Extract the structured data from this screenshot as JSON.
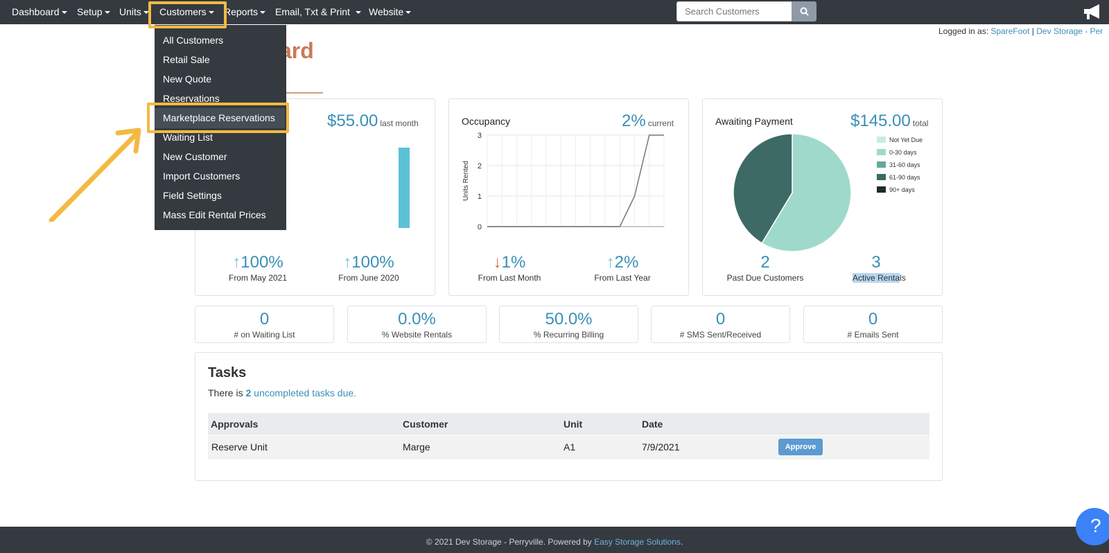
{
  "nav": {
    "items": [
      "Dashboard",
      "Setup",
      "Units",
      "Customers",
      "Reports",
      "Email, Txt & Print",
      "Website"
    ],
    "search_placeholder": "Search Customers"
  },
  "header": {
    "logged_in_label": "Logged in as:",
    "user": "SpareFoot",
    "separator": "|",
    "location": "Dev Storage - Per"
  },
  "page": {
    "title_fragment": "ard"
  },
  "dropdown": {
    "items": [
      "All Customers",
      "Retail Sale",
      "New Quote",
      "Reservations",
      "Marketplace Reservations",
      "Waiting List",
      "New Customer",
      "Import Customers",
      "Field Settings",
      "Mass Edit Rental Prices"
    ],
    "highlighted": "Marketplace Reservations"
  },
  "revenue_card": {
    "value": "$55.00",
    "period": "last month",
    "stat1_value": "100%",
    "stat1_label": "From May 2021",
    "stat2_value": "100%",
    "stat2_label": "From June 2020"
  },
  "occupancy_card": {
    "label": "Occupancy",
    "value": "2%",
    "period": "current",
    "stat1_value": "1%",
    "stat1_label": "From Last Month",
    "stat2_value": "2%",
    "stat2_label": "From Last Year"
  },
  "payment_card": {
    "label": "Awaiting Payment",
    "value": "$145.00",
    "period": "total",
    "stat1_value": "2",
    "stat1_label": "Past Due Customers",
    "stat2_value": "3",
    "stat2_label": "Active Rentals"
  },
  "small_cards": [
    {
      "value": "0",
      "label": "# on Waiting List"
    },
    {
      "value": "0.0%",
      "label": "% Website Rentals"
    },
    {
      "value": "50.0%",
      "label": "% Recurring Billing"
    },
    {
      "value": "0",
      "label": "# SMS Sent/Received"
    },
    {
      "value": "0",
      "label": "# Emails Sent"
    }
  ],
  "tasks": {
    "title": "Tasks",
    "text_prefix": "There is",
    "count": "2",
    "link_text": "uncompleted tasks due.",
    "columns": [
      "Approvals",
      "Customer",
      "Unit",
      "Date"
    ],
    "row": {
      "approval": "Reserve Unit",
      "customer": "Marge",
      "unit": "A1",
      "date": "7/9/2021",
      "action": "Approve"
    }
  },
  "footer": {
    "prefix": "© 2021 Dev Storage - Perryville. Powered by",
    "link": "Easy Storage Solutions",
    "suffix": "."
  },
  "help_label": "?",
  "colors": {
    "navbar": "#343a40",
    "accent": "#3a8fb7",
    "highlight": "#f4b942",
    "title": "#c97a55"
  },
  "chart_data": [
    {
      "type": "bar",
      "title": "",
      "categories": [
        "",
        "",
        "",
        "",
        "",
        "",
        "",
        "",
        "",
        "",
        "",
        "",
        ""
      ],
      "values": [
        0,
        0,
        0,
        0,
        0,
        0,
        0,
        0,
        0,
        0,
        0,
        0,
        55
      ],
      "ylim": [
        0,
        55
      ]
    },
    {
      "type": "line",
      "title": "",
      "ylabel": "Units Rented",
      "y_ticks": [
        "0",
        "1",
        "2",
        "3"
      ],
      "ylim": [
        0,
        3
      ],
      "x": [
        0,
        1,
        2,
        3,
        4,
        5,
        6,
        7,
        8,
        9,
        10,
        11,
        12
      ],
      "values": [
        0,
        0,
        0,
        0,
        0,
        0,
        0,
        0,
        0,
        0,
        1,
        3,
        3
      ],
      "grid": true
    },
    {
      "type": "pie",
      "title": "",
      "legend": [
        "Not Yet Due",
        "0-30 days",
        "31-60 days",
        "61-90 days",
        "90+ days"
      ],
      "legend_colors": [
        "#c8ece6",
        "#9fd9cc",
        "#66a89c",
        "#3d6a65",
        "#1f2b2a"
      ],
      "values": [
        0,
        85,
        0,
        60,
        0
      ],
      "legend_position": "top-right"
    }
  ]
}
